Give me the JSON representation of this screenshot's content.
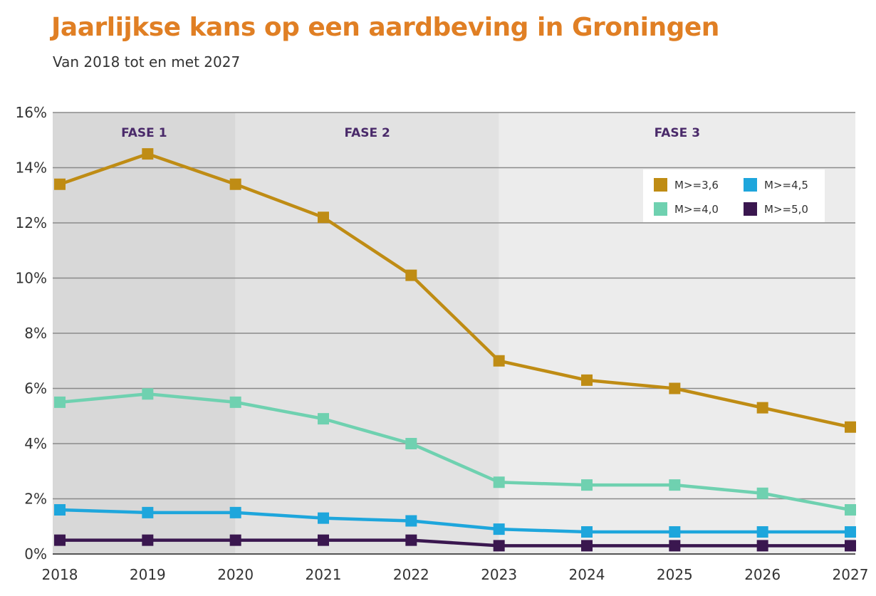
{
  "header": {
    "title": "Jaarlijkse kans op een aardbeving in Groningen",
    "subtitle": "Van 2018 tot en met 2027"
  },
  "chart_data": {
    "type": "line",
    "title": "Jaarlijkse kans op een aardbeving in Groningen",
    "subtitle": "Van 2018 tot en met 2027",
    "xlabel": "",
    "ylabel": "",
    "x": [
      "2018",
      "2019",
      "2020",
      "2021",
      "2022",
      "2023",
      "2024",
      "2025",
      "2026",
      "2027"
    ],
    "ylim": [
      0,
      16
    ],
    "yticks": [
      "0%",
      "2%",
      "4%",
      "6%",
      "8%",
      "10%",
      "12%",
      "14%",
      "16%"
    ],
    "grid": true,
    "legend_position": "top-right",
    "phases": [
      {
        "label": "FASE 1",
        "start": "2018",
        "end": "2020",
        "color": "#d8d8d8"
      },
      {
        "label": "FASE 2",
        "start": "2020",
        "end": "2023",
        "color": "#e2e2e2"
      },
      {
        "label": "FASE 3",
        "start": "2023",
        "end": "2027",
        "color": "#ececec"
      }
    ],
    "series": [
      {
        "name": "M>=3,6",
        "color": "#bf8c14",
        "values": [
          13.4,
          14.5,
          13.4,
          12.2,
          10.1,
          7.0,
          6.3,
          6.0,
          5.3,
          4.6
        ]
      },
      {
        "name": "M>=4,0",
        "color": "#6fd1b0",
        "values": [
          5.5,
          5.8,
          5.5,
          4.9,
          4.0,
          2.6,
          2.5,
          2.5,
          2.2,
          1.6
        ]
      },
      {
        "name": "M>=4,5",
        "color": "#1ea6dc",
        "values": [
          1.6,
          1.5,
          1.5,
          1.3,
          1.2,
          0.9,
          0.8,
          0.8,
          0.8,
          0.8
        ]
      },
      {
        "name": "M>=5,0",
        "color": "#3a174f",
        "values": [
          0.5,
          0.5,
          0.5,
          0.5,
          0.5,
          0.3,
          0.3,
          0.3,
          0.3,
          0.3
        ]
      }
    ]
  }
}
